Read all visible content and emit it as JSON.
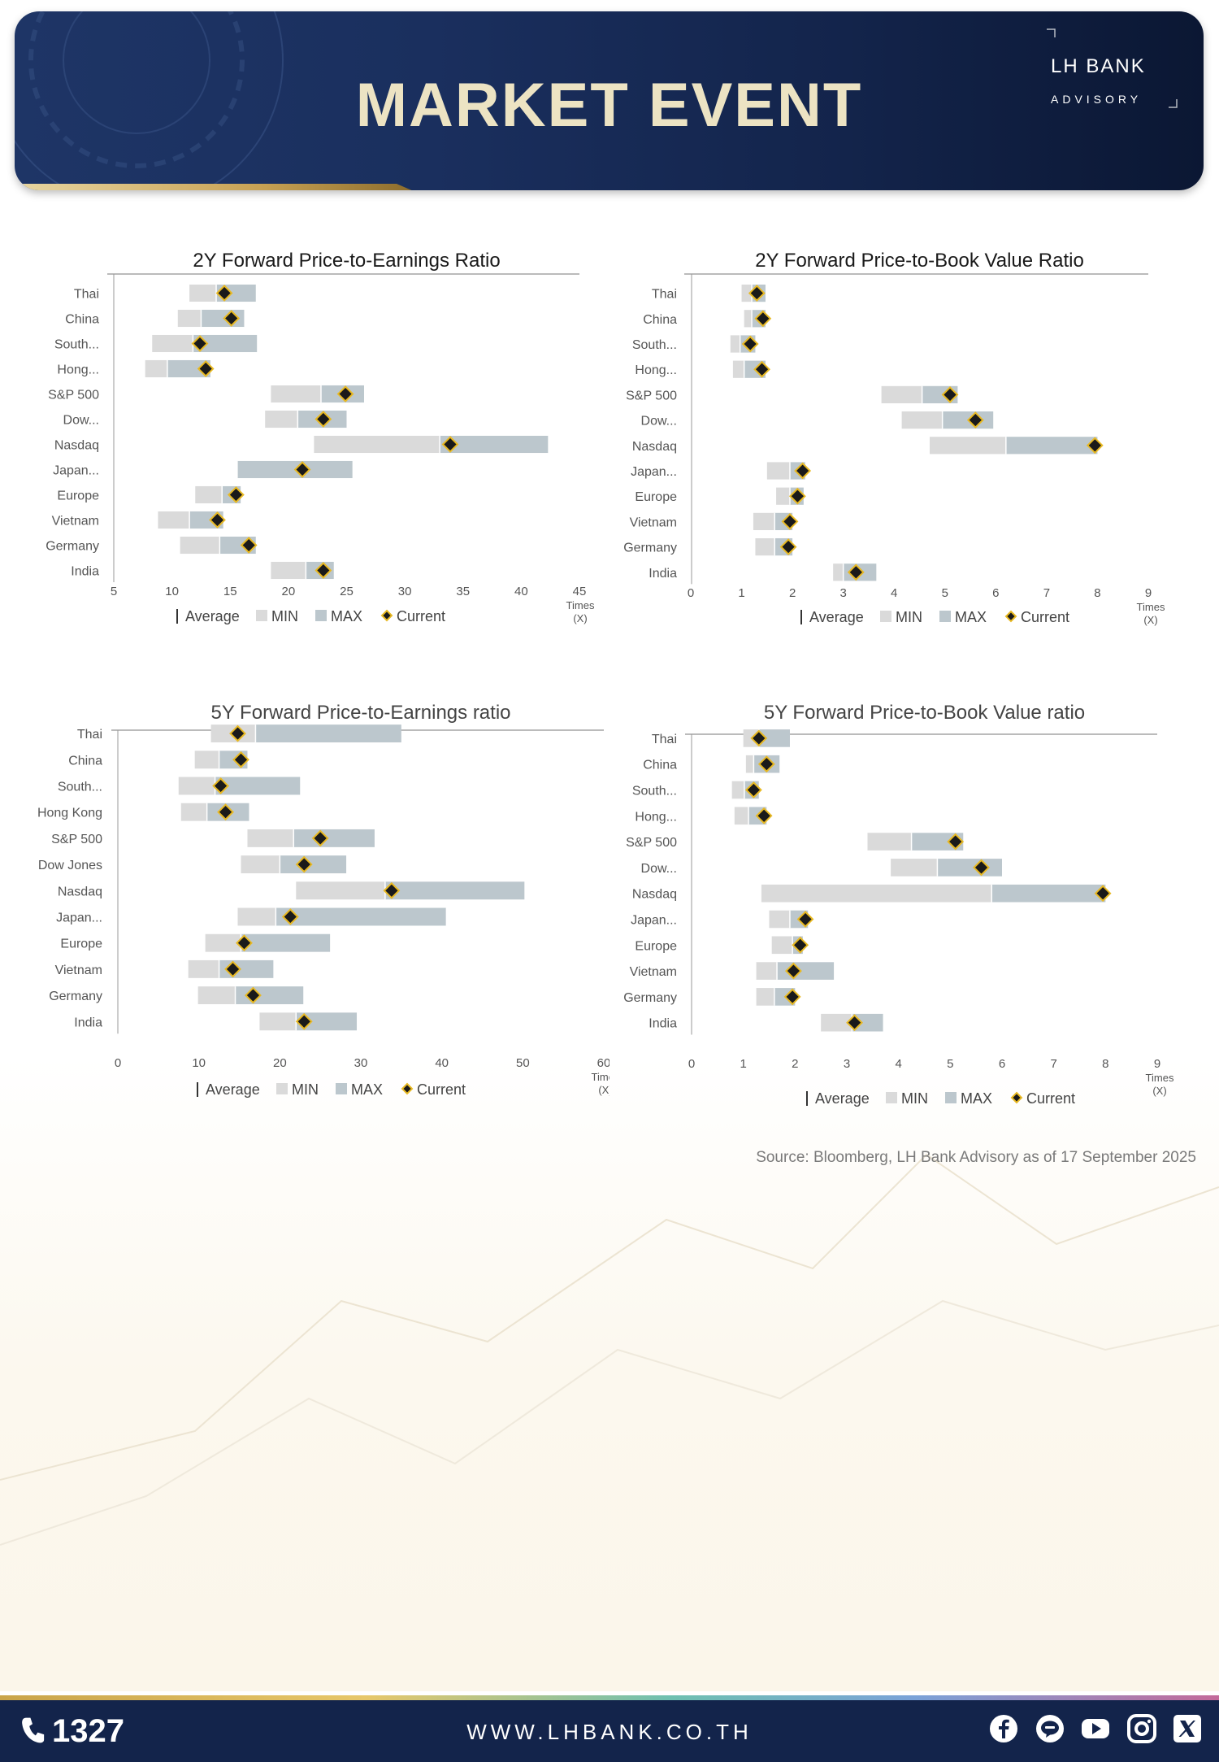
{
  "header": {
    "title": "MARKET EVENT",
    "logo_brand": "LH BANK",
    "logo_sub": "ADVISORY"
  },
  "legend": {
    "average": "Average",
    "min": "MIN",
    "max": "MAX",
    "current": "Current"
  },
  "axis_unit": [
    "Times",
    "(X)"
  ],
  "source": "Source: Bloomberg,  LH Bank Advisory  as of 17 September 2025",
  "footer": {
    "phone": "1327",
    "url": "WWW.LHBANK.CO.TH",
    "social_icons": [
      "facebook-icon",
      "line-icon",
      "youtube-icon",
      "instagram-icon",
      "x-icon"
    ]
  },
  "colors": {
    "min": "#dadada",
    "max": "#bcc7cd",
    "current": "#1a1a1a",
    "current_border": "#e8b923",
    "header": "#1a2f5e",
    "title": "#ece3c3"
  },
  "chart_data": [
    {
      "type": "range-bar",
      "title": "2Y Forward Price-to-Earnings Ratio",
      "categories": [
        "Thai",
        "China",
        "South...",
        "Hong...",
        "S&P 500",
        "Dow...",
        "Nasdaq",
        "Japan...",
        "Europe",
        "Vietnam",
        "Germany",
        "India"
      ],
      "min": [
        11.5,
        10.5,
        8.3,
        7.7,
        18.5,
        18.0,
        22.2,
        15.6,
        12.0,
        8.8,
        10.7,
        18.5
      ],
      "average": [
        13.8,
        12.5,
        11.8,
        9.6,
        22.8,
        20.8,
        33.0,
        15.6,
        14.3,
        11.5,
        14.1,
        21.5
      ],
      "max": [
        17.2,
        16.2,
        17.3,
        13.3,
        26.5,
        25.0,
        42.3,
        25.5,
        15.9,
        14.4,
        17.2,
        23.9
      ],
      "current": [
        14.5,
        15.1,
        12.4,
        12.9,
        24.9,
        23.0,
        33.9,
        21.2,
        15.5,
        13.9,
        16.6,
        23.0
      ],
      "xlim": [
        5,
        45
      ],
      "xticks": [
        "5",
        "10",
        "15",
        "20",
        "25",
        "30",
        "35",
        "40",
        "45"
      ]
    },
    {
      "type": "range-bar",
      "title": "2Y Forward Price-to-Book Value Ratio",
      "categories": [
        "Thai",
        "China",
        "South...",
        "Hong...",
        "S&P 500",
        "Dow...",
        "Nasdaq",
        "Japan...",
        "Europe",
        "Vietnam",
        "Germany",
        "India"
      ],
      "min": [
        1.0,
        1.05,
        0.78,
        0.83,
        3.75,
        4.15,
        4.7,
        1.5,
        1.68,
        1.23,
        1.27,
        2.8
      ],
      "average": [
        1.2,
        1.2,
        0.97,
        1.05,
        4.55,
        4.95,
        6.2,
        1.95,
        1.95,
        1.65,
        1.65,
        3.0
      ],
      "max": [
        1.47,
        1.47,
        1.27,
        1.47,
        5.25,
        5.95,
        8.0,
        2.25,
        2.22,
        2.0,
        2.0,
        3.65
      ],
      "current": [
        1.3,
        1.42,
        1.17,
        1.4,
        5.1,
        5.6,
        7.95,
        2.2,
        2.1,
        1.95,
        1.92,
        3.25
      ],
      "xlim": [
        0,
        9
      ],
      "xticks": [
        "0",
        "1",
        "2",
        "3",
        "4",
        "5",
        "6",
        "7",
        "8",
        "9"
      ]
    },
    {
      "type": "range-bar",
      "title": "5Y Forward Price-to-Earnings ratio",
      "categories": [
        "Thai",
        "China",
        "South...",
        "Hong Kong",
        "S&P 500",
        "Dow Jones",
        "Nasdaq",
        "Japan...",
        "Europe",
        "Vietnam",
        "Germany",
        "India"
      ],
      "min": [
        11.5,
        9.5,
        7.5,
        7.8,
        16.0,
        15.2,
        22.0,
        14.8,
        10.8,
        8.7,
        9.9,
        17.5
      ],
      "average": [
        17.0,
        12.5,
        12.0,
        11.0,
        21.7,
        20.0,
        33.0,
        19.5,
        15.2,
        12.5,
        14.5,
        22.0
      ],
      "max": [
        35.0,
        16.0,
        22.5,
        16.2,
        31.7,
        28.2,
        50.2,
        40.5,
        26.2,
        19.2,
        22.9,
        29.5
      ],
      "current": [
        14.8,
        15.2,
        12.7,
        13.3,
        25.0,
        23.0,
        33.8,
        21.3,
        15.6,
        14.2,
        16.7,
        23.0
      ],
      "xlim": [
        0,
        60
      ],
      "xticks": [
        "0",
        "10",
        "20",
        "30",
        "40",
        "50",
        "60"
      ]
    },
    {
      "type": "range-bar",
      "title": "5Y Forward Price-to-Book Value ratio",
      "categories": [
        "Thai",
        "China",
        "South...",
        "Hong...",
        "S&P 500",
        "Dow...",
        "Nasdaq",
        "Japan...",
        "Europe",
        "Vietnam",
        "Germany",
        "India"
      ],
      "min": [
        1.0,
        1.05,
        0.78,
        0.83,
        3.4,
        3.85,
        1.35,
        1.5,
        1.55,
        1.25,
        1.25,
        2.5
      ],
      "average": [
        1.3,
        1.2,
        1.02,
        1.1,
        4.25,
        4.75,
        5.8,
        1.9,
        1.95,
        1.65,
        1.6,
        3.1
      ],
      "max": [
        1.9,
        1.7,
        1.3,
        1.45,
        5.25,
        6.0,
        8.0,
        2.25,
        2.15,
        2.75,
        2.0,
        3.7
      ],
      "current": [
        1.3,
        1.45,
        1.2,
        1.4,
        5.1,
        5.6,
        7.95,
        2.2,
        2.1,
        1.97,
        1.95,
        3.15
      ],
      "xlim": [
        0,
        9
      ],
      "xticks": [
        "0",
        "1",
        "2",
        "3",
        "4",
        "5",
        "6",
        "7",
        "8",
        "9"
      ]
    }
  ]
}
